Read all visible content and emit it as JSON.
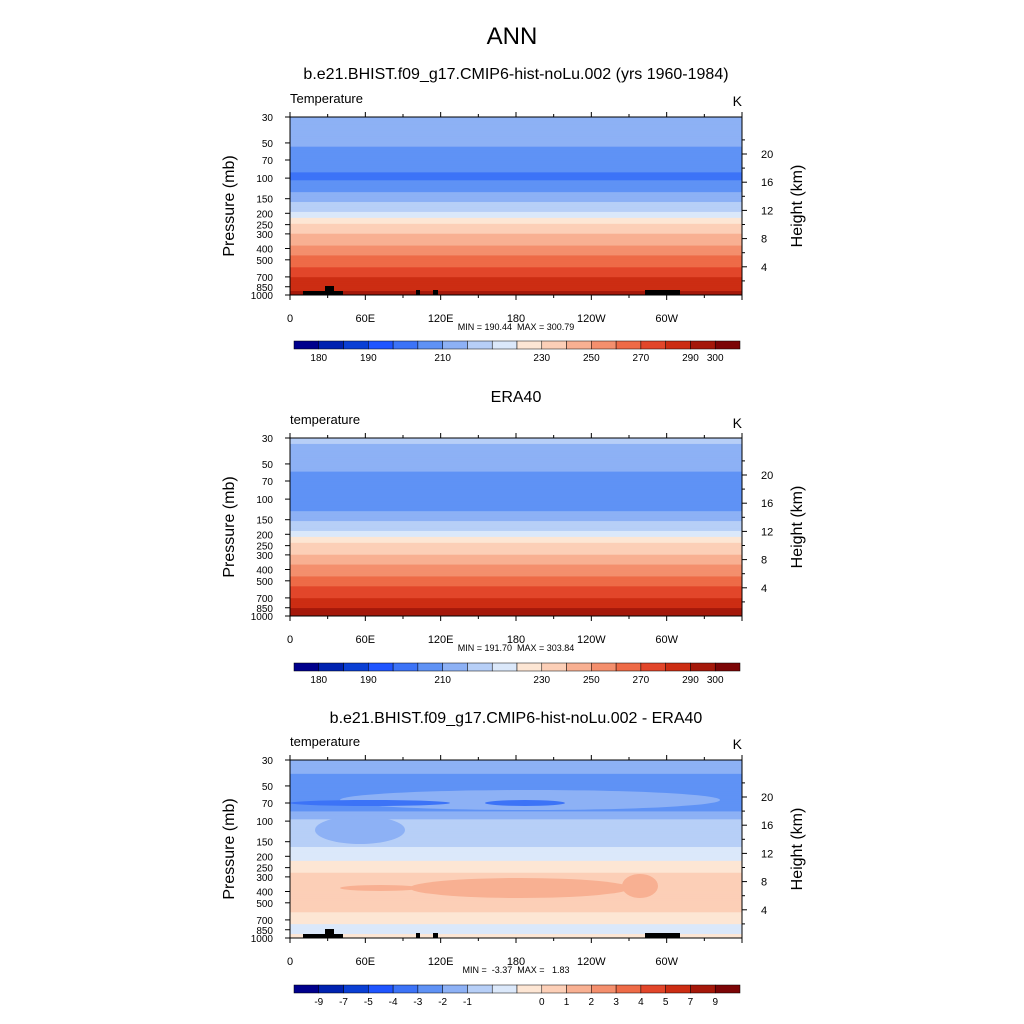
{
  "main_title": "ANN",
  "units": "K",
  "colors": {
    "abs_palette": [
      "#00008c",
      "#0022b0",
      "#0a3fd4",
      "#1f55ff",
      "#3c73f7",
      "#5f92f5",
      "#8db1f5",
      "#b7cff7",
      "#dbe8fa",
      "#fde6d4",
      "#fccfb7",
      "#f8b092",
      "#f48f6d",
      "#ee6b47",
      "#e2462a",
      "#cc2d13",
      "#a5180a",
      "#7c0506"
    ],
    "diff_palette": [
      "#00008c",
      "#0022b0",
      "#0a3fd4",
      "#1f55ff",
      "#3c73f7",
      "#5f92f5",
      "#8db1f5",
      "#b7cff7",
      "#dbe8fa",
      "#fde6d4",
      "#fccfb7",
      "#f8b092",
      "#f48f6d",
      "#ee6b47",
      "#e2462a",
      "#cc2d13",
      "#a5180a",
      "#7c0506"
    ]
  },
  "chart_data": [
    {
      "type": "heatmap",
      "title": "b.e21.BHIST.f09_g17.CMIP6-hist-noLu.002 (yrs 1960-1984)",
      "variable_label": "Temperature",
      "units": "K",
      "xlabel": "",
      "ylabel_left": "Pressure (mb)",
      "ylabel_right": "Height (km)",
      "x_ticks": [
        "0",
        "60E",
        "120E",
        "180",
        "120W",
        "60W"
      ],
      "pressure_ticks": [
        30,
        50,
        70,
        100,
        150,
        200,
        250,
        300,
        400,
        500,
        700,
        850,
        1000
      ],
      "height_ticks": [
        4,
        8,
        12,
        16,
        20
      ],
      "ylim": [
        1000,
        30
      ],
      "stats": "MIN = 190.44  MAX = 300.79",
      "colorbar_labels": [
        "180",
        "190",
        "210",
        "230",
        "250",
        "270",
        "290",
        "300"
      ],
      "profile_pressure": [
        30,
        50,
        70,
        100,
        150,
        200,
        250,
        300,
        400,
        500,
        700,
        850,
        1000
      ],
      "profile_values": [
        215,
        211,
        207,
        204,
        213,
        221,
        231,
        240,
        253,
        264,
        279,
        287,
        294
      ]
    },
    {
      "type": "heatmap",
      "title": "ERA40",
      "variable_label": "temperature",
      "units": "K",
      "xlabel": "",
      "ylabel_left": "Pressure (mb)",
      "ylabel_right": "Height (km)",
      "x_ticks": [
        "0",
        "60E",
        "120E",
        "180",
        "120W",
        "60W"
      ],
      "pressure_ticks": [
        30,
        50,
        70,
        100,
        150,
        200,
        250,
        300,
        400,
        500,
        700,
        850,
        1000
      ],
      "height_ticks": [
        4,
        8,
        12,
        16,
        20
      ],
      "ylim": [
        1000,
        30
      ],
      "stats": "MIN = 191.70  MAX = 303.84",
      "colorbar_labels": [
        "180",
        "190",
        "210",
        "230",
        "250",
        "270",
        "290",
        "300"
      ],
      "profile_pressure": [
        30,
        50,
        70,
        100,
        150,
        200,
        250,
        300,
        400,
        500,
        700,
        850,
        1000
      ],
      "profile_values": [
        216,
        212,
        208,
        205,
        214,
        222,
        232,
        241,
        254,
        265,
        280,
        289,
        296
      ]
    },
    {
      "type": "heatmap",
      "title": "b.e21.BHIST.f09_g17.CMIP6-hist-noLu.002 - ERA40",
      "variable_label": "temperature",
      "units": "K",
      "xlabel": "",
      "ylabel_left": "Pressure (mb)",
      "ylabel_right": "Height (km)",
      "x_ticks": [
        "0",
        "60E",
        "120E",
        "180",
        "120W",
        "60W"
      ],
      "pressure_ticks": [
        30,
        50,
        70,
        100,
        150,
        200,
        250,
        300,
        400,
        500,
        700,
        850,
        1000
      ],
      "height_ticks": [
        4,
        8,
        12,
        16,
        20
      ],
      "ylim": [
        1000,
        30
      ],
      "stats": "MIN =  -3.37  MAX =   1.83",
      "colorbar_labels": [
        "-9",
        "-7",
        "-5",
        "-4",
        "-3",
        "-2",
        "-1",
        "0",
        "1",
        "2",
        "3",
        "4",
        "5",
        "7",
        "9"
      ],
      "profile_pressure": [
        30,
        50,
        70,
        100,
        150,
        200,
        250,
        300,
        400,
        500,
        700,
        850,
        1000
      ],
      "profile_values": [
        -1.5,
        -2.5,
        -3.0,
        -0.8,
        -0.6,
        -0.3,
        0.4,
        0.6,
        1.0,
        0.7,
        0.3,
        -0.5,
        0.4
      ]
    }
  ]
}
